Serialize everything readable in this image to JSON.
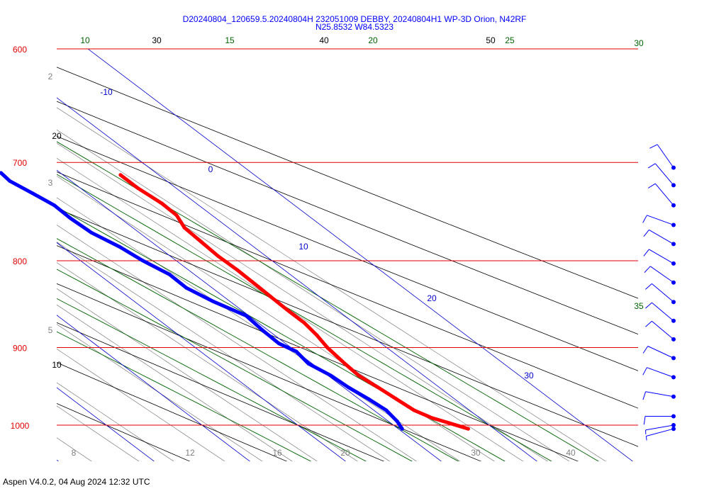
{
  "header": {
    "title_line1": "D20240804_120659.5.20240804H 232051009 DEBBY, 20240804H1 WP-3D Orion, N42RF",
    "title_line2": "N25.8532 W84.5323"
  },
  "footer": {
    "text": "Aspen V4.0.2, 04 Aug 2024  12:32 UTC"
  },
  "colors": {
    "isobar": "#e00000",
    "temperature": "#ff0000",
    "dewpoint": "#0000ff",
    "isotherm": "#0000cc",
    "dry_adiabat": "#000000",
    "moist_adiabat": "#006400",
    "mixing_ratio": "#808080",
    "barbs": "#0000ff"
  },
  "chart_data": {
    "type": "skew-t",
    "pressure_levels": [
      {
        "p": 600,
        "label": "600"
      },
      {
        "p": 700,
        "label": "700"
      },
      {
        "p": 800,
        "label": "800"
      },
      {
        "p": 900,
        "label": "900"
      },
      {
        "p": 1000,
        "label": "1000"
      }
    ],
    "isotherm_labels": [
      "-10",
      "0",
      "10",
      "20",
      "30"
    ],
    "dry_adiabat_labels": [
      "30",
      "40",
      "50",
      "20",
      "10"
    ],
    "moist_adiabat_labels": [
      "10",
      "15",
      "20",
      "25",
      "30",
      "35"
    ],
    "mixing_ratio_labels": [
      "2",
      "3",
      "5"
    ],
    "bottom_axis_labels": [
      "8",
      "12",
      "16",
      "20",
      "30",
      "40"
    ],
    "temperature_profile": [
      {
        "p": 1005,
        "t": 27.3
      },
      {
        "p": 997,
        "t": 26.1
      },
      {
        "p": 990,
        "t": 25.0
      },
      {
        "p": 980,
        "t": 24.2
      },
      {
        "p": 965,
        "t": 23.9
      },
      {
        "p": 950,
        "t": 23.6
      },
      {
        "p": 935,
        "t": 23.2
      },
      {
        "p": 920,
        "t": 23.4
      },
      {
        "p": 900,
        "t": 23.8
      },
      {
        "p": 885,
        "t": 24.4
      },
      {
        "p": 870,
        "t": 24.8
      },
      {
        "p": 855,
        "t": 24.8
      },
      {
        "p": 840,
        "t": 24.9
      },
      {
        "p": 825,
        "t": 25.0
      },
      {
        "p": 810,
        "t": 25.1
      },
      {
        "p": 795,
        "t": 25.0
      },
      {
        "p": 780,
        "t": 25.2
      },
      {
        "p": 765,
        "t": 25.4
      },
      {
        "p": 752,
        "t": 26.3
      },
      {
        "p": 740,
        "t": 26.4
      },
      {
        "p": 725,
        "t": 26.0
      },
      {
        "p": 712,
        "t": 26.0
      }
    ],
    "dewpoint_profile": [
      {
        "p": 1005,
        "td": 20.4
      },
      {
        "p": 995,
        "td": 20.9
      },
      {
        "p": 980,
        "td": 21.3
      },
      {
        "p": 965,
        "td": 21.0
      },
      {
        "p": 950,
        "td": 20.5
      },
      {
        "p": 935,
        "td": 20.3
      },
      {
        "p": 920,
        "td": 19.6
      },
      {
        "p": 905,
        "td": 20.0
      },
      {
        "p": 895,
        "td": 19.3
      },
      {
        "p": 880,
        "td": 19.4
      },
      {
        "p": 862,
        "td": 19.7
      },
      {
        "p": 845,
        "td": 18.2
      },
      {
        "p": 830,
        "td": 17.3
      },
      {
        "p": 815,
        "td": 17.4
      },
      {
        "p": 800,
        "td": 16.5
      },
      {
        "p": 785,
        "td": 16.0
      },
      {
        "p": 770,
        "td": 15.0
      },
      {
        "p": 755,
        "td": 14.8
      },
      {
        "p": 742,
        "td": 14.9
      },
      {
        "p": 730,
        "td": 14.3
      },
      {
        "p": 718,
        "td": 13.6
      },
      {
        "p": 710,
        "td": 13.8
      }
    ],
    "wind_barbs": [
      {
        "p": 705,
        "dir": 325,
        "kt": 10
      },
      {
        "p": 722,
        "dir": 320,
        "kt": 10
      },
      {
        "p": 742,
        "dir": 320,
        "kt": 10
      },
      {
        "p": 762,
        "dir": 290,
        "kt": 10
      },
      {
        "p": 782,
        "dir": 300,
        "kt": 10
      },
      {
        "p": 803,
        "dir": 300,
        "kt": 10
      },
      {
        "p": 824,
        "dir": 305,
        "kt": 10
      },
      {
        "p": 846,
        "dir": 310,
        "kt": 10
      },
      {
        "p": 868,
        "dir": 310,
        "kt": 10
      },
      {
        "p": 890,
        "dir": 310,
        "kt": 10
      },
      {
        "p": 913,
        "dir": 295,
        "kt": 10
      },
      {
        "p": 937,
        "dir": 290,
        "kt": 10
      },
      {
        "p": 962,
        "dir": 280,
        "kt": 10
      },
      {
        "p": 988,
        "dir": 270,
        "kt": 10
      },
      {
        "p": 1000,
        "dir": 260,
        "kt": 5
      },
      {
        "p": 1005,
        "dir": 255,
        "kt": 5
      }
    ]
  }
}
